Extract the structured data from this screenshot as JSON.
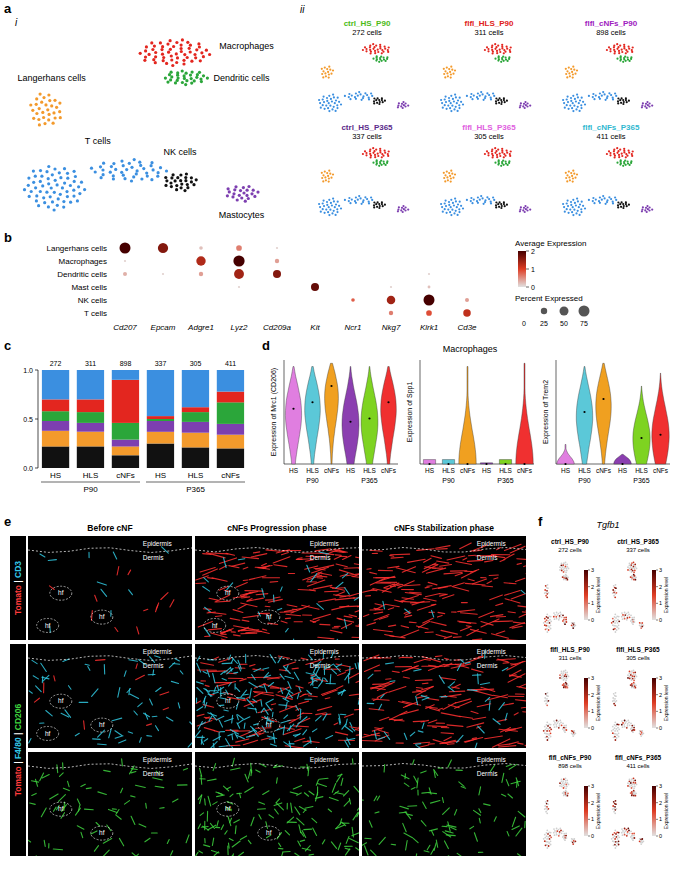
{
  "panel_a": {
    "letter": "a",
    "sub_i": "i",
    "sub_ii": "ii",
    "clusters": [
      {
        "label": "Langerhans cells",
        "color": "#f39a2c"
      },
      {
        "label": "Macrophages",
        "color": "#e3261f"
      },
      {
        "label": "Dendritic cells",
        "color": "#2ba63a"
      },
      {
        "label": "T cells",
        "color": "#3b8fe0"
      },
      {
        "label": "NK cells",
        "color": "#111111"
      },
      {
        "label": "Mastocytes",
        "color": "#7d3fb0"
      }
    ],
    "samples": [
      {
        "name": "ctrl_HS_P90",
        "cells": "272 cells",
        "color": "#4cbb17"
      },
      {
        "name": "flfl_HLS_P90",
        "cells": "311 cells",
        "color": "#e02020"
      },
      {
        "name": "flfl_cNFs_P90",
        "cells": "898 cells",
        "color": "#a020c0"
      },
      {
        "name": "ctrl_HS_P365",
        "cells": "337 cells",
        "color": "#5a2a8a"
      },
      {
        "name": "flfl_HLS_P365",
        "cells": "305 cells",
        "color": "#e060e0"
      },
      {
        "name": "flfl_cNFs_P365",
        "cells": "411 cells",
        "color": "#30b8d0"
      }
    ]
  },
  "chart_data": [
    {
      "type": "dot_matrix",
      "letter": "b",
      "rows": [
        "Langerhans cells",
        "Macrophages",
        "Dendritic cells",
        "Mast cells",
        "NK cells",
        "T cells"
      ],
      "columns": [
        "Cd207",
        "Epcam",
        "Adgre1",
        "Lyz2",
        "Cd209a",
        "Kit",
        "Ncr1",
        "Nkg7",
        "Klrk1",
        "Cd3e"
      ],
      "avg_expression": [
        [
          2.0,
          1.6,
          0.2,
          0.6,
          0.1,
          0,
          0,
          0,
          0,
          0
        ],
        [
          0.1,
          0,
          1.3,
          2.1,
          0.4,
          0,
          0,
          0,
          0,
          0
        ],
        [
          0.3,
          0.1,
          0.4,
          1.4,
          1.6,
          0,
          0,
          0,
          0.1,
          0
        ],
        [
          0,
          0,
          0,
          0.1,
          0,
          1.8,
          0,
          0.1,
          0.2,
          0
        ],
        [
          0,
          0,
          0,
          0,
          0,
          0,
          0.8,
          1.4,
          2.0,
          0.4
        ],
        [
          0,
          0,
          0,
          0,
          0,
          0,
          0,
          0.6,
          0.9,
          1.2
        ]
      ],
      "percent_expressed": [
        [
          75,
          65,
          8,
          20,
          3,
          0,
          0,
          0,
          0,
          0
        ],
        [
          3,
          0,
          55,
          78,
          12,
          0,
          0,
          0,
          0,
          0
        ],
        [
          10,
          3,
          12,
          60,
          40,
          0,
          0,
          0,
          3,
          0
        ],
        [
          0,
          0,
          0,
          3,
          0,
          40,
          0,
          3,
          5,
          0
        ],
        [
          0,
          0,
          0,
          0,
          0,
          0,
          8,
          45,
          75,
          10
        ],
        [
          0,
          0,
          0,
          0,
          0,
          0,
          0,
          12,
          20,
          35
        ]
      ],
      "color_legend_title": "Average Expression",
      "color_range": [
        0,
        2
      ],
      "color_ticks": [
        0,
        1,
        2
      ],
      "size_legend_title": "Percent Expressed",
      "size_ticks": [
        0,
        25,
        50,
        75
      ]
    },
    {
      "type": "bar",
      "letter": "c",
      "stacked": true,
      "categories": [
        "HS",
        "HLS",
        "cNFs",
        "HS",
        "HLS",
        "cNFs"
      ],
      "groups": [
        {
          "label": "P90",
          "size": 3
        },
        {
          "label": "P365",
          "size": 3
        }
      ],
      "totals": [
        272,
        311,
        898,
        337,
        305,
        411
      ],
      "ylim": [
        0,
        1
      ],
      "yticks": [
        {
          "value": 0,
          "label": "0.0"
        },
        {
          "value": 0.5,
          "label": "0.5"
        },
        {
          "value": 1,
          "label": "1.0"
        }
      ],
      "series": [
        {
          "color": "#111111",
          "values": [
            0.22,
            0.22,
            0.13,
            0.25,
            0.21,
            0.2
          ]
        },
        {
          "color": "#f39a2c",
          "values": [
            0.16,
            0.15,
            0.09,
            0.12,
            0.15,
            0.14
          ]
        },
        {
          "color": "#7d3fb0",
          "values": [
            0.1,
            0.09,
            0.07,
            0.11,
            0.11,
            0.11
          ]
        },
        {
          "color": "#2ba63a",
          "values": [
            0.1,
            0.11,
            0.17,
            0.02,
            0.1,
            0.22
          ]
        },
        {
          "color": "#e3261f",
          "values": [
            0.12,
            0.13,
            0.44,
            0.03,
            0.05,
            0.11
          ]
        },
        {
          "color": "#3b8fe0",
          "values": [
            0.3,
            0.3,
            0.1,
            0.47,
            0.38,
            0.22
          ]
        }
      ]
    },
    {
      "type": "violin",
      "letter": "d",
      "title": "Macrophages",
      "categories": [
        "HS",
        "HLS",
        "cNFs",
        "HS",
        "HLS",
        "cNFs"
      ],
      "groups": [
        {
          "label": "P90",
          "size": 3
        },
        {
          "label": "P365",
          "size": 3
        }
      ],
      "colors": [
        "#e07ee0",
        "#5bc8d8",
        "#f0a020",
        "#8b3fb0",
        "#7ed321",
        "#f03030"
      ],
      "ylim": [
        0,
        3.2
      ],
      "tick_labels": false,
      "panels": [
        {
          "ylabel": "Expression of Mrc1 (CD206)",
          "max": [
            3.0,
            3.0,
            3.1,
            3.0,
            3.0,
            3.0
          ],
          "median": [
            1.7,
            1.9,
            2.4,
            1.3,
            1.4,
            1.9
          ]
        },
        {
          "ylabel": "Expression of Spp1",
          "max": [
            0.1,
            0.1,
            3.0,
            0.0,
            0.1,
            3.1
          ],
          "median": [
            0,
            0,
            0,
            0,
            0,
            0
          ]
        },
        {
          "ylabel": "Expression of Trem2",
          "max": [
            0.6,
            3.0,
            3.1,
            0.3,
            2.4,
            2.8
          ],
          "median": [
            0,
            1.6,
            2.0,
            0,
            0.8,
            0.9
          ]
        }
      ]
    }
  ],
  "panel_e": {
    "letter": "e",
    "columns": [
      "Before cNF",
      "cNFs Progression phase",
      "cNFs Stabilization phase"
    ],
    "row_labels": [
      {
        "rows": [
          0
        ],
        "parts": [
          {
            "text": "Tomato",
            "color": "#ff3b3b"
          },
          {
            "text": "|",
            "color": "#ffffff"
          },
          {
            "text": "CD3",
            "color": "#33c8e8"
          }
        ]
      },
      {
        "rows": [
          1,
          2
        ],
        "parts": [
          {
            "text": "Tomato",
            "color": "#ff3b3b"
          },
          {
            "text": "|",
            "color": "#ffffff"
          },
          {
            "text": "F4/80",
            "color": "#33c8e8"
          },
          {
            "text": "|",
            "color": "#ffffff"
          },
          {
            "text": "CD206",
            "color": "#3ed43e"
          }
        ]
      }
    ],
    "channels": [
      [
        "#ff3030",
        "#30c8e0"
      ],
      [
        "#ff3030",
        "#30c8e0"
      ],
      [
        "#3ed43e"
      ]
    ],
    "images": [
      [
        {
          "labels": [
            "Epidermis",
            "Dermis",
            "hf",
            "hf",
            "hf"
          ]
        },
        {
          "labels": [
            "Epidermis",
            "Dermis",
            "hf",
            "hf",
            "hf"
          ]
        },
        {
          "labels": [
            "Epidermis",
            "Dermis"
          ]
        }
      ],
      [
        {
          "labels": [
            "Epidermis",
            "Dermis",
            "hf",
            "hf",
            "hf"
          ]
        },
        {
          "labels": [
            "Epidermis",
            "Dermis",
            "hf",
            "hf"
          ]
        },
        {
          "labels": [
            "Epidermis",
            "Dermis"
          ]
        }
      ],
      [
        {
          "labels": [
            "Epidermis",
            "Dermis",
            "hf",
            "hf"
          ]
        },
        {
          "labels": [
            "Epidermis",
            "hf",
            "hf"
          ]
        },
        {
          "labels": [
            "Epidermis",
            "Dermis"
          ]
        }
      ]
    ]
  },
  "panel_f": {
    "letter": "f",
    "gene": "Tgfb1",
    "legend_title": "Expression level",
    "color_range": [
      0,
      3
    ],
    "color_ticks": [
      0,
      1,
      2,
      3
    ],
    "samples": [
      {
        "name": "ctrl_HS_P90",
        "cells": "272 cells"
      },
      {
        "name": "ctrl_HS_P365",
        "cells": "337 cells"
      },
      {
        "name": "flfl_HLS_P90",
        "cells": "311 cells"
      },
      {
        "name": "flfl_HLS_P365",
        "cells": "305 cells"
      },
      {
        "name": "flfl_cNFs_P90",
        "cells": "898 cells"
      },
      {
        "name": "flfl_cNFs_P365",
        "cells": "411 cells"
      }
    ]
  }
}
